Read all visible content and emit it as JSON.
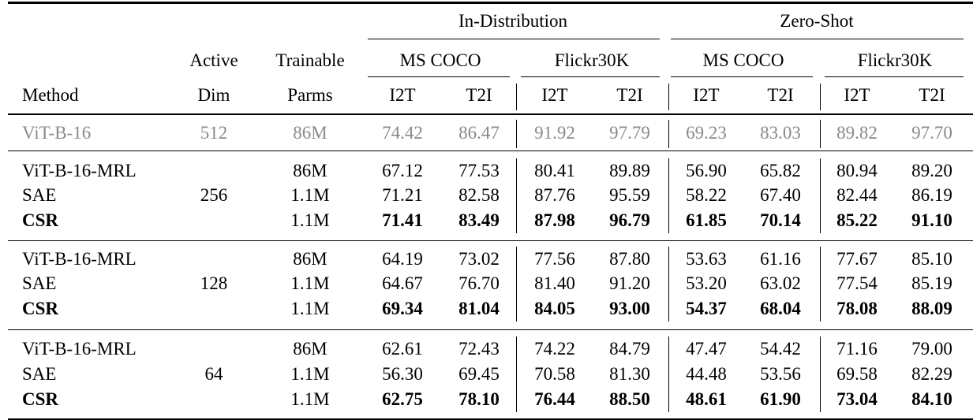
{
  "header": {
    "in_distribution": "In-Distribution",
    "zero_shot": "Zero-Shot",
    "active": "Active",
    "trainable": "Trainable",
    "ms_coco_1": "MS COCO",
    "flickr_1": "Flickr30K",
    "ms_coco_2": "MS COCO",
    "flickr_2": "Flickr30K",
    "method": "Method",
    "dim": "Dim",
    "parms": "Parms",
    "metrics": [
      "I2T",
      "T2I",
      "I2T",
      "T2I",
      "I2T",
      "T2I",
      "I2T",
      "T2I"
    ]
  },
  "baseline": {
    "method": "ViT-B-16",
    "dim": "512",
    "parms": "86M",
    "values": [
      "74.42",
      "86.47",
      "91.92",
      "97.79",
      "69.23",
      "83.03",
      "89.82",
      "97.70"
    ]
  },
  "groups": [
    {
      "dim": "256",
      "rows": [
        {
          "method": "ViT-B-16-MRL",
          "parms": "86M",
          "bold": false,
          "values": [
            "67.12",
            "77.53",
            "80.41",
            "89.89",
            "56.90",
            "65.82",
            "80.94",
            "89.20"
          ]
        },
        {
          "method": "SAE",
          "parms": "1.1M",
          "bold": false,
          "values": [
            "71.21",
            "82.58",
            "87.76",
            "95.59",
            "58.22",
            "67.40",
            "82.44",
            "86.19"
          ]
        },
        {
          "method": "CSR",
          "parms": "1.1M",
          "bold": true,
          "values": [
            "71.41",
            "83.49",
            "87.98",
            "96.79",
            "61.85",
            "70.14",
            "85.22",
            "91.10"
          ]
        }
      ]
    },
    {
      "dim": "128",
      "rows": [
        {
          "method": "ViT-B-16-MRL",
          "parms": "86M",
          "bold": false,
          "values": [
            "64.19",
            "73.02",
            "77.56",
            "87.80",
            "53.63",
            "61.16",
            "77.67",
            "85.10"
          ]
        },
        {
          "method": "SAE",
          "parms": "1.1M",
          "bold": false,
          "values": [
            "64.67",
            "76.70",
            "81.40",
            "91.20",
            "53.20",
            "63.02",
            "77.54",
            "85.19"
          ]
        },
        {
          "method": "CSR",
          "parms": "1.1M",
          "bold": true,
          "values": [
            "69.34",
            "81.04",
            "84.05",
            "93.00",
            "54.37",
            "68.04",
            "78.08",
            "88.09"
          ]
        }
      ]
    },
    {
      "dim": "64",
      "rows": [
        {
          "method": "ViT-B-16-MRL",
          "parms": "86M",
          "bold": false,
          "values": [
            "62.61",
            "72.43",
            "74.22",
            "84.79",
            "47.47",
            "54.42",
            "71.16",
            "79.00"
          ]
        },
        {
          "method": "SAE",
          "parms": "1.1M",
          "bold": false,
          "values": [
            "56.30",
            "69.45",
            "70.58",
            "81.30",
            "44.48",
            "53.56",
            "69.58",
            "82.29"
          ]
        },
        {
          "method": "CSR",
          "parms": "1.1M",
          "bold": true,
          "values": [
            "62.75",
            "78.10",
            "76.44",
            "88.50",
            "48.61",
            "61.90",
            "73.04",
            "84.10"
          ]
        }
      ]
    }
  ],
  "colors": {
    "baseline_text": "#8a8a8a",
    "text": "#000000"
  }
}
